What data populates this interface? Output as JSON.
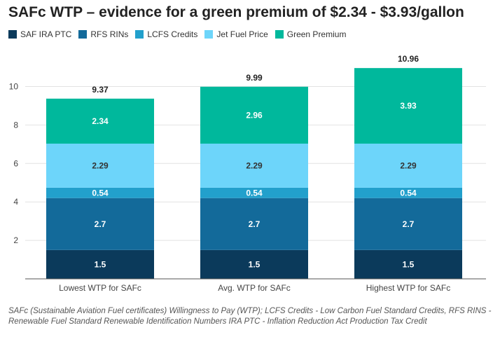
{
  "chart_data": {
    "type": "bar",
    "stacked": true,
    "title": "SAFc WTP – evidence for a green premium of $2.34 - $3.93/gallon",
    "categories": [
      "Lowest WTP for SAFc",
      "Avg. WTP for SAFc",
      "Highest WTP for SAFc"
    ],
    "series": [
      {
        "name": "SAF IRA PTC",
        "color": "#0b3a5b",
        "values": [
          1.5,
          1.5,
          1.5
        ]
      },
      {
        "name": "RFS RINs",
        "color": "#136a9a",
        "values": [
          2.7,
          2.7,
          2.7
        ]
      },
      {
        "name": "LCFS Credits",
        "color": "#22a0cc",
        "values": [
          0.54,
          0.54,
          0.54
        ]
      },
      {
        "name": "Jet Fuel Price",
        "color": "#6dd5fa",
        "values": [
          2.29,
          2.29,
          2.29
        ]
      },
      {
        "name": "Green Premium",
        "color": "#00b89c",
        "values": [
          2.34,
          2.96,
          3.93
        ]
      }
    ],
    "totals": [
      9.37,
      9.99,
      10.96
    ],
    "value_labels": [
      [
        "1.5",
        "2.7",
        "0.54",
        "2.29",
        "2.34"
      ],
      [
        "1.5",
        "2.7",
        "0.54",
        "2.29",
        "2.96"
      ],
      [
        "1.5",
        "2.7",
        "0.54",
        "2.29",
        "3.93"
      ]
    ],
    "label_colors": [
      "#ffffff",
      "#ffffff",
      "#ffffff",
      "#333333",
      "#ffffff"
    ],
    "yticks": [
      2,
      4,
      6,
      8,
      10
    ],
    "ylim": [
      0,
      11.5
    ],
    "grid": true,
    "legend_position": "top-left"
  },
  "footnote": "SAFc (Sustainable Aviation Fuel certificates) Willingness to Pay (WTP); LCFS Credits - Low Carbon Fuel Standard Credits, RFS RINS - Renewable Fuel Standard Renewable Identification Numbers IRA PTC - Inflation Reduction Act Production Tax Credit"
}
